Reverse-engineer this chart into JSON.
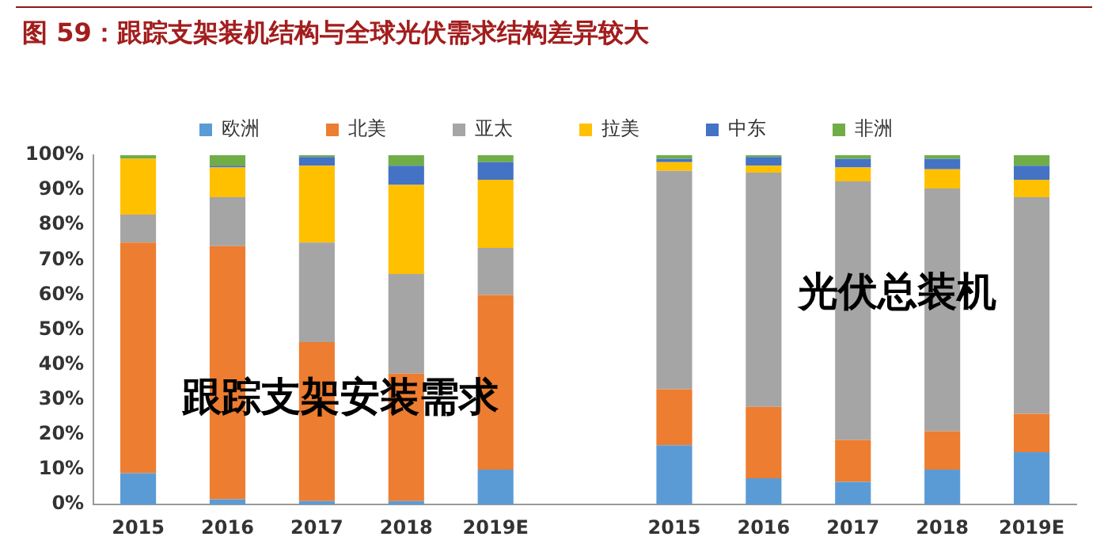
{
  "chart_data": {
    "type": "bar",
    "title": "图 59：跟踪支架装机结构与全球光伏需求结构差异较大",
    "categories": [
      "2015",
      "2016",
      "2017",
      "2018",
      "2019E",
      null,
      "2015",
      "2016",
      "2017",
      "2018",
      "2019E"
    ],
    "stacked": true,
    "legend": "top",
    "grid": false,
    "ylim": [
      0,
      100
    ],
    "yticks": [
      {
        "value": 0,
        "label": "0%"
      },
      {
        "value": 10,
        "label": "10%"
      },
      {
        "value": 20,
        "label": "20%"
      },
      {
        "value": 30,
        "label": "30%"
      },
      {
        "value": 40,
        "label": "40%"
      },
      {
        "value": 50,
        "label": "50%"
      },
      {
        "value": 60,
        "label": "60%"
      },
      {
        "value": 70,
        "label": "70%"
      },
      {
        "value": 80,
        "label": "80%"
      },
      {
        "value": 90,
        "label": "90%"
      },
      {
        "value": 100,
        "label": "100%"
      }
    ],
    "series": [
      {
        "name": "欧洲",
        "color": "#5b9bd5",
        "values": [
          9,
          1.5,
          1,
          1,
          10,
          null,
          17,
          7.5,
          6.5,
          10,
          15
        ]
      },
      {
        "name": "北美",
        "color": "#ed7d31",
        "values": [
          66,
          72.5,
          45.5,
          36.5,
          50,
          null,
          16,
          20.5,
          12,
          11,
          11
        ]
      },
      {
        "name": "亚太",
        "color": "#a5a5a5",
        "values": [
          8,
          14,
          28.5,
          28.5,
          13.5,
          null,
          62.5,
          67,
          74,
          69.5,
          62
        ]
      },
      {
        "name": "拉美",
        "color": "#ffc000",
        "values": [
          16,
          8.5,
          22,
          25.5,
          19.5,
          null,
          2.5,
          2,
          4,
          5.5,
          5
        ]
      },
      {
        "name": "中东",
        "color": "#4472c4",
        "values": [
          0,
          0.5,
          2.5,
          5.5,
          5,
          null,
          1,
          2.5,
          2.5,
          3,
          4
        ]
      },
      {
        "name": "非洲",
        "color": "#70ad47",
        "values": [
          1,
          3,
          0.5,
          3,
          2,
          null,
          1,
          0.5,
          1,
          1,
          3
        ]
      }
    ],
    "annotations": [
      "跟踪支架安装需求",
      "光伏总装机"
    ]
  }
}
